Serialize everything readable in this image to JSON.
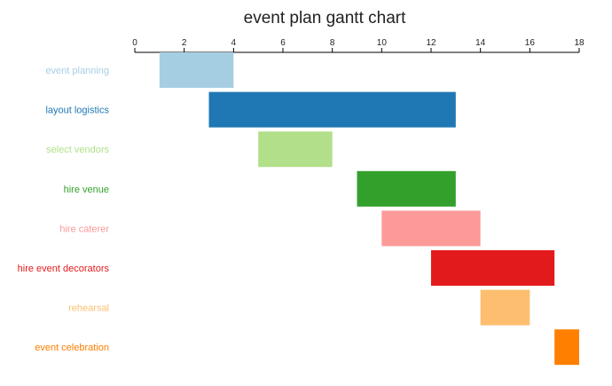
{
  "chart_data": {
    "type": "gantt",
    "title": "event plan gantt chart",
    "xlim": [
      0,
      18
    ],
    "ticks": [
      0,
      2,
      4,
      6,
      8,
      10,
      12,
      14,
      16,
      18
    ],
    "tick_labels": [
      "0",
      "2",
      "4",
      "6",
      "8",
      "10",
      "12",
      "14",
      "16",
      "18"
    ],
    "axis_position": "top",
    "grid": false,
    "tasks": [
      {
        "label": "event planning",
        "start": 1,
        "end": 4,
        "color": "#a6cee3"
      },
      {
        "label": "layout logistics",
        "start": 3,
        "end": 13,
        "color": "#1f78b4"
      },
      {
        "label": "select vendors",
        "start": 5,
        "end": 8,
        "color": "#b2df8a"
      },
      {
        "label": "hire venue",
        "start": 9,
        "end": 13,
        "color": "#33a02c"
      },
      {
        "label": "hire caterer",
        "start": 10,
        "end": 14,
        "color": "#fb9a99"
      },
      {
        "label": "hire event decorators",
        "start": 12,
        "end": 17,
        "color": "#e31a1c"
      },
      {
        "label": "rehearsal",
        "start": 14,
        "end": 16,
        "color": "#fdbf6f"
      },
      {
        "label": "event celebration",
        "start": 17,
        "end": 18,
        "color": "#ff7f00"
      }
    ]
  }
}
